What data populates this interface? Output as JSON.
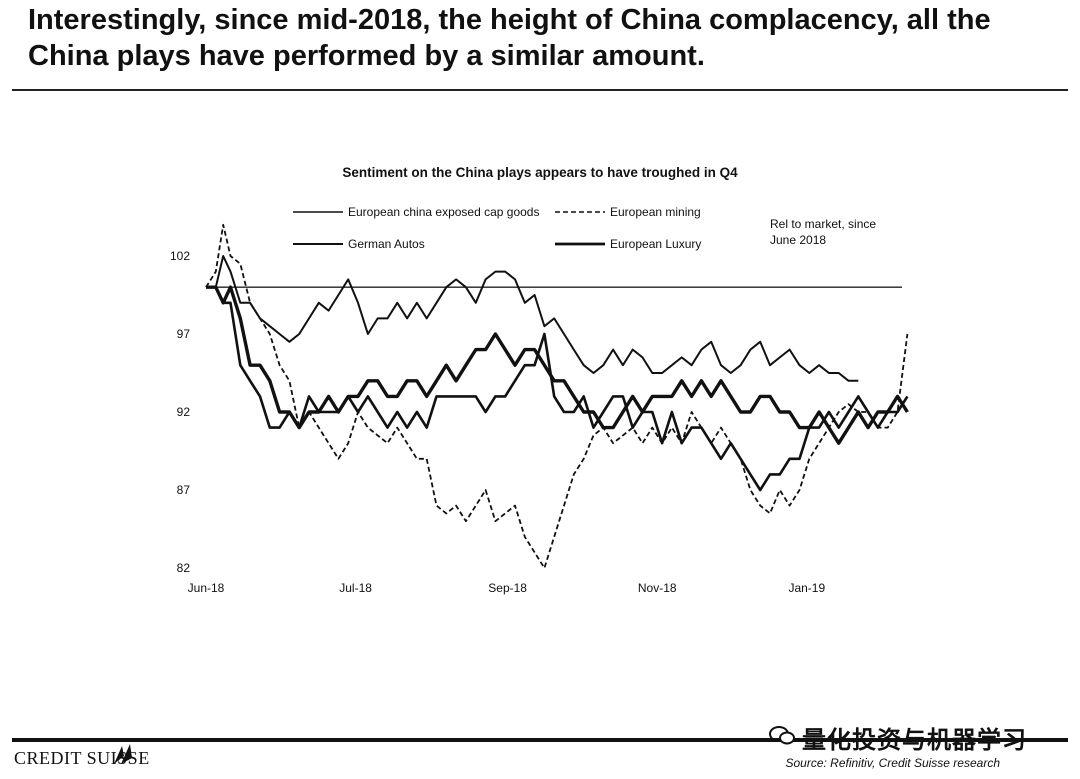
{
  "page": {
    "headline": "Interestingly, since mid-2018, the height of China complacency, all the China plays have performed by a similar amount.",
    "logo": "CREDIT SUISSE",
    "source": "Source: Refinitiv, Credit Suisse research",
    "watermark": "量化投资与机器学习"
  },
  "chart_data": {
    "type": "line",
    "title": "Sentiment on the China plays appears to have troughed in Q4",
    "annotation": "Rel to market, since June 2018",
    "xlabel": "",
    "ylabel": "",
    "ylim": [
      82,
      104
    ],
    "yticks": [
      102,
      97,
      92,
      87,
      82
    ],
    "xticks": [
      "Jun-18",
      "Jul-18",
      "Sep-18",
      "Nov-18",
      "Jan-19"
    ],
    "xtick_days": [
      0,
      61,
      123,
      184,
      245
    ],
    "xlim_days": [
      0,
      283
    ],
    "reference_value": 100,
    "grid": false,
    "legend_placement": "top",
    "series": [
      {
        "name": "European china exposed cap goods",
        "style": "thin",
        "points": [
          [
            0,
            100
          ],
          [
            4,
            100
          ],
          [
            7,
            102
          ],
          [
            10,
            101
          ],
          [
            14,
            99
          ],
          [
            18,
            99
          ],
          [
            22,
            98
          ],
          [
            26,
            97.5
          ],
          [
            30,
            97
          ],
          [
            34,
            96.5
          ],
          [
            38,
            97
          ],
          [
            42,
            98
          ],
          [
            46,
            99
          ],
          [
            50,
            98.5
          ],
          [
            54,
            99.5
          ],
          [
            58,
            100.5
          ],
          [
            62,
            99
          ],
          [
            66,
            97
          ],
          [
            70,
            98
          ],
          [
            74,
            98
          ],
          [
            78,
            99
          ],
          [
            82,
            98
          ],
          [
            86,
            99
          ],
          [
            90,
            98
          ],
          [
            94,
            99
          ],
          [
            98,
            100
          ],
          [
            102,
            100.5
          ],
          [
            106,
            100
          ],
          [
            110,
            99
          ],
          [
            114,
            100.5
          ],
          [
            118,
            101
          ],
          [
            122,
            101
          ],
          [
            126,
            100.5
          ],
          [
            130,
            99
          ],
          [
            134,
            99.5
          ],
          [
            138,
            97.5
          ],
          [
            142,
            98
          ],
          [
            146,
            97
          ],
          [
            150,
            96
          ],
          [
            154,
            95
          ],
          [
            158,
            94.5
          ],
          [
            162,
            95
          ],
          [
            166,
            96
          ],
          [
            170,
            95
          ],
          [
            174,
            96
          ],
          [
            178,
            95.5
          ],
          [
            182,
            94.5
          ],
          [
            186,
            94.5
          ],
          [
            190,
            95
          ],
          [
            194,
            95.5
          ],
          [
            198,
            95
          ],
          [
            202,
            96
          ],
          [
            206,
            96.5
          ],
          [
            210,
            95
          ],
          [
            214,
            94.5
          ],
          [
            218,
            95
          ],
          [
            222,
            96
          ],
          [
            226,
            96.5
          ],
          [
            230,
            95
          ],
          [
            234,
            95.5
          ],
          [
            238,
            96
          ],
          [
            242,
            95
          ],
          [
            246,
            94.5
          ],
          [
            250,
            95
          ],
          [
            254,
            94.5
          ],
          [
            258,
            94.5
          ],
          [
            262,
            94
          ],
          [
            266,
            94
          ]
        ]
      },
      {
        "name": "European mining",
        "style": "dashed",
        "points": [
          [
            0,
            100
          ],
          [
            4,
            101
          ],
          [
            7,
            104
          ],
          [
            10,
            102
          ],
          [
            14,
            101.5
          ],
          [
            18,
            99
          ],
          [
            22,
            98
          ],
          [
            26,
            97
          ],
          [
            30,
            95
          ],
          [
            34,
            94
          ],
          [
            38,
            91
          ],
          [
            42,
            92
          ],
          [
            46,
            91
          ],
          [
            50,
            90
          ],
          [
            54,
            89
          ],
          [
            58,
            90
          ],
          [
            62,
            92
          ],
          [
            66,
            91
          ],
          [
            70,
            90.5
          ],
          [
            74,
            90
          ],
          [
            78,
            91
          ],
          [
            82,
            90
          ],
          [
            86,
            89
          ],
          [
            90,
            89
          ],
          [
            94,
            86
          ],
          [
            98,
            85.5
          ],
          [
            102,
            86
          ],
          [
            106,
            85
          ],
          [
            110,
            86
          ],
          [
            114,
            87
          ],
          [
            118,
            85
          ],
          [
            122,
            85.5
          ],
          [
            126,
            86
          ],
          [
            130,
            84
          ],
          [
            134,
            83
          ],
          [
            138,
            82
          ],
          [
            142,
            84
          ],
          [
            146,
            86
          ],
          [
            150,
            88
          ],
          [
            154,
            89
          ],
          [
            158,
            90.5
          ],
          [
            162,
            91
          ],
          [
            166,
            90
          ],
          [
            170,
            90.5
          ],
          [
            174,
            91
          ],
          [
            178,
            90
          ],
          [
            182,
            91
          ],
          [
            186,
            90
          ],
          [
            190,
            91
          ],
          [
            194,
            90
          ],
          [
            198,
            92
          ],
          [
            202,
            91
          ],
          [
            206,
            90
          ],
          [
            210,
            91
          ],
          [
            214,
            90
          ],
          [
            218,
            89
          ],
          [
            222,
            87
          ],
          [
            226,
            86
          ],
          [
            230,
            85.5
          ],
          [
            234,
            87
          ],
          [
            238,
            86
          ],
          [
            242,
            87
          ],
          [
            246,
            89
          ],
          [
            250,
            90
          ],
          [
            254,
            91
          ],
          [
            258,
            92
          ],
          [
            262,
            92.5
          ],
          [
            266,
            92
          ],
          [
            270,
            92
          ],
          [
            274,
            91
          ],
          [
            278,
            91
          ],
          [
            282,
            92
          ],
          [
            286,
            97
          ]
        ]
      },
      {
        "name": "German Autos",
        "style": "medium",
        "points": [
          [
            0,
            100
          ],
          [
            4,
            100
          ],
          [
            7,
            99
          ],
          [
            10,
            99
          ],
          [
            14,
            95
          ],
          [
            18,
            94
          ],
          [
            22,
            93
          ],
          [
            26,
            91
          ],
          [
            30,
            91
          ],
          [
            34,
            92
          ],
          [
            38,
            91
          ],
          [
            42,
            93
          ],
          [
            46,
            92
          ],
          [
            50,
            92
          ],
          [
            54,
            92
          ],
          [
            58,
            93
          ],
          [
            62,
            92
          ],
          [
            66,
            93
          ],
          [
            70,
            92
          ],
          [
            74,
            91
          ],
          [
            78,
            92
          ],
          [
            82,
            91
          ],
          [
            86,
            92
          ],
          [
            90,
            91
          ],
          [
            94,
            93
          ],
          [
            98,
            93
          ],
          [
            102,
            93
          ],
          [
            106,
            93
          ],
          [
            110,
            93
          ],
          [
            114,
            92
          ],
          [
            118,
            93
          ],
          [
            122,
            93
          ],
          [
            126,
            94
          ],
          [
            130,
            95
          ],
          [
            134,
            95
          ],
          [
            138,
            97
          ],
          [
            142,
            93
          ],
          [
            146,
            92
          ],
          [
            150,
            92
          ],
          [
            154,
            93
          ],
          [
            158,
            91
          ],
          [
            162,
            92
          ],
          [
            166,
            93
          ],
          [
            170,
            93
          ],
          [
            174,
            91
          ],
          [
            178,
            92
          ],
          [
            182,
            92
          ],
          [
            186,
            90
          ],
          [
            190,
            92
          ],
          [
            194,
            90
          ],
          [
            198,
            91
          ],
          [
            202,
            91
          ],
          [
            206,
            90
          ],
          [
            210,
            89
          ],
          [
            214,
            90
          ],
          [
            218,
            89
          ],
          [
            222,
            88
          ],
          [
            226,
            87
          ],
          [
            230,
            88
          ],
          [
            234,
            88
          ],
          [
            238,
            89
          ],
          [
            242,
            89
          ],
          [
            246,
            91
          ],
          [
            250,
            91
          ],
          [
            254,
            92
          ],
          [
            258,
            91
          ],
          [
            262,
            92
          ],
          [
            266,
            93
          ],
          [
            270,
            92
          ],
          [
            274,
            91
          ],
          [
            278,
            92
          ],
          [
            282,
            92
          ],
          [
            286,
            93
          ]
        ]
      },
      {
        "name": "European Luxury",
        "style": "thick",
        "points": [
          [
            0,
            100
          ],
          [
            4,
            100
          ],
          [
            7,
            99
          ],
          [
            10,
            100
          ],
          [
            14,
            98
          ],
          [
            18,
            95
          ],
          [
            22,
            95
          ],
          [
            26,
            94
          ],
          [
            30,
            92
          ],
          [
            34,
            92
          ],
          [
            38,
            91
          ],
          [
            42,
            92
          ],
          [
            46,
            92
          ],
          [
            50,
            93
          ],
          [
            54,
            92
          ],
          [
            58,
            93
          ],
          [
            62,
            93
          ],
          [
            66,
            94
          ],
          [
            70,
            94
          ],
          [
            74,
            93
          ],
          [
            78,
            93
          ],
          [
            82,
            94
          ],
          [
            86,
            94
          ],
          [
            90,
            93
          ],
          [
            94,
            94
          ],
          [
            98,
            95
          ],
          [
            102,
            94
          ],
          [
            106,
            95
          ],
          [
            110,
            96
          ],
          [
            114,
            96
          ],
          [
            118,
            97
          ],
          [
            122,
            96
          ],
          [
            126,
            95
          ],
          [
            130,
            96
          ],
          [
            134,
            96
          ],
          [
            138,
            95
          ],
          [
            142,
            94
          ],
          [
            146,
            94
          ],
          [
            150,
            93
          ],
          [
            154,
            92
          ],
          [
            158,
            92
          ],
          [
            162,
            91
          ],
          [
            166,
            91
          ],
          [
            170,
            92
          ],
          [
            174,
            93
          ],
          [
            178,
            92
          ],
          [
            182,
            93
          ],
          [
            186,
            93
          ],
          [
            190,
            93
          ],
          [
            194,
            94
          ],
          [
            198,
            93
          ],
          [
            202,
            94
          ],
          [
            206,
            93
          ],
          [
            210,
            94
          ],
          [
            214,
            93
          ],
          [
            218,
            92
          ],
          [
            222,
            92
          ],
          [
            226,
            93
          ],
          [
            230,
            93
          ],
          [
            234,
            92
          ],
          [
            238,
            92
          ],
          [
            242,
            91
          ],
          [
            246,
            91
          ],
          [
            250,
            92
          ],
          [
            254,
            91
          ],
          [
            258,
            90
          ],
          [
            262,
            91
          ],
          [
            266,
            92
          ],
          [
            270,
            91
          ],
          [
            274,
            92
          ],
          [
            278,
            92
          ],
          [
            282,
            93
          ],
          [
            286,
            92
          ]
        ]
      }
    ]
  }
}
